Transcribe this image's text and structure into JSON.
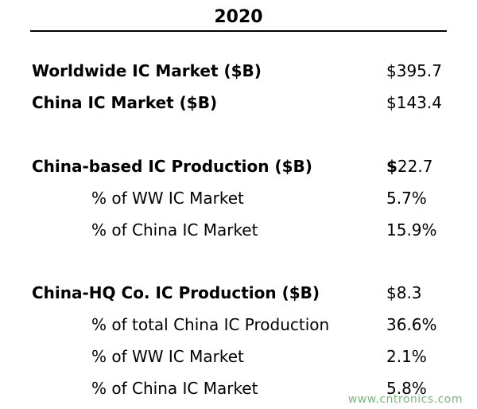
{
  "table": {
    "year_header": "2020",
    "rows": {
      "ww_market": {
        "label": "Worldwide IC Market ($B)",
        "value": "$395.7"
      },
      "china_market": {
        "label": "China IC Market ($B)",
        "value": "$143.4"
      },
      "china_based_prod": {
        "label": "China-based IC Production ($B)",
        "value_prefix": "$",
        "value_rest": "22.7"
      },
      "cb_pct_ww": {
        "label": "% of WW IC Market",
        "value": "5.7%"
      },
      "cb_pct_china": {
        "label": "% of China IC Market",
        "value": "15.9%"
      },
      "china_hq_prod": {
        "label": "China-HQ Co. IC Production ($B)",
        "value": "$8.3"
      },
      "hq_pct_total_china": {
        "label": "% of total China IC Production",
        "value": "36.6%"
      },
      "hq_pct_ww": {
        "label": "% of WW IC Market",
        "value": "2.1%"
      },
      "hq_pct_china": {
        "label": "% of China IC Market",
        "value": "5.8%"
      }
    }
  },
  "watermark": "www.cntronics.com"
}
